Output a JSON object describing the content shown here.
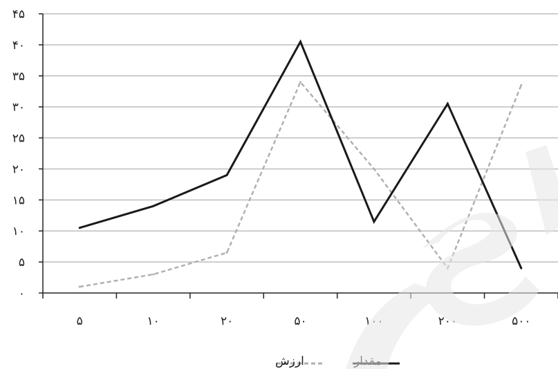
{
  "chart_data": {
    "type": "line",
    "categories": [
      "۵",
      "۱۰",
      "۲۰",
      "۵۰",
      "۱۰۰",
      "۲۰۰",
      "۵۰۰"
    ],
    "series": [
      {
        "name": "مقدار",
        "values": [
          10.5,
          14,
          19,
          40.5,
          11.5,
          30.5,
          4
        ],
        "color": "#1a1a1a",
        "style": "solid"
      },
      {
        "name": "ارزش",
        "values": [
          1,
          3,
          6.5,
          34,
          20,
          4,
          33.5
        ],
        "color": "#b0b0b0",
        "style": "dashed"
      }
    ],
    "yticks": [
      {
        "value": 0,
        "label": "۰"
      },
      {
        "value": 5,
        "label": "۵"
      },
      {
        "value": 10,
        "label": "۱۰"
      },
      {
        "value": 15,
        "label": "۱۵"
      },
      {
        "value": 20,
        "label": "۲۰"
      },
      {
        "value": 25,
        "label": "۲۵"
      },
      {
        "value": 30,
        "label": "۳۰"
      },
      {
        "value": 35,
        "label": "۳۵"
      },
      {
        "value": 40,
        "label": "۴۰"
      },
      {
        "value": 45,
        "label": "۴۵"
      }
    ],
    "ylim": [
      0,
      45
    ],
    "grid": true,
    "legend_position": "bottom-center",
    "title": "",
    "xlabel": "",
    "ylabel": ""
  },
  "watermark": {
    "color": "#e6e6e6"
  }
}
